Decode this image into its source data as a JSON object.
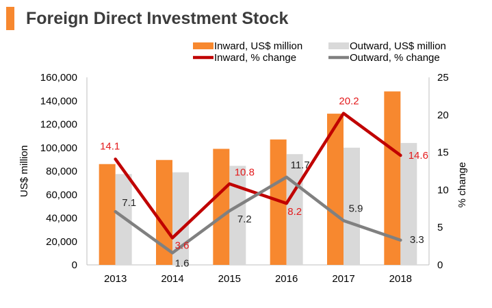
{
  "header": {
    "title": "Foreign Direct Investment Stock",
    "accent_color": "#f7882f"
  },
  "colors": {
    "inward_bar": "#f7882f",
    "outward_bar": "#d9d9d9",
    "inward_line": "#c00000",
    "outward_line": "#808080",
    "inward_label": "#e31a1c",
    "outward_label": "#222222",
    "axis_text": "#000000"
  },
  "chart_data": {
    "type": "bar+line",
    "title": "Foreign Direct Investment Stock",
    "categories": [
      "2013",
      "2014",
      "2015",
      "2016",
      "2017",
      "2018"
    ],
    "ylabel": "US$ million",
    "y2label": "% change",
    "ylim": [
      0,
      160000
    ],
    "y2lim": [
      0,
      25
    ],
    "yticks": [
      "0",
      "20,000",
      "40,000",
      "60,000",
      "80,000",
      "100,000",
      "120,000",
      "140,000",
      "160,000"
    ],
    "y2ticks": [
      "0",
      "5",
      "10",
      "15",
      "20",
      "25"
    ],
    "bars": [
      {
        "name": "Inward, US$ million",
        "values": [
          86000,
          89500,
          99000,
          107000,
          129000,
          148000
        ]
      },
      {
        "name": "Outward, US$ million",
        "values": [
          77500,
          79000,
          84500,
          94500,
          100000,
          104000
        ]
      }
    ],
    "lines": [
      {
        "name": "Inward, % change",
        "values": [
          14.1,
          3.6,
          10.8,
          8.2,
          20.2,
          14.6
        ],
        "labels": [
          "14.1",
          "3.6",
          "10.8",
          "8.2",
          "20.2",
          "14.6"
        ]
      },
      {
        "name": "Outward, % change",
        "values": [
          7.1,
          1.6,
          7.2,
          11.7,
          5.9,
          3.3
        ],
        "labels": [
          "7.1",
          "1.6",
          "7.2",
          "11.7",
          "5.9",
          "3.3"
        ]
      }
    ],
    "legend": [
      {
        "label": "Inward, US$ million",
        "kind": "bar"
      },
      {
        "label": "Outward, US$ million",
        "kind": "bar"
      },
      {
        "label": "Inward, % change",
        "kind": "line"
      },
      {
        "label": "Outward, % change",
        "kind": "line"
      }
    ],
    "legend_position": "top",
    "grid": false
  }
}
